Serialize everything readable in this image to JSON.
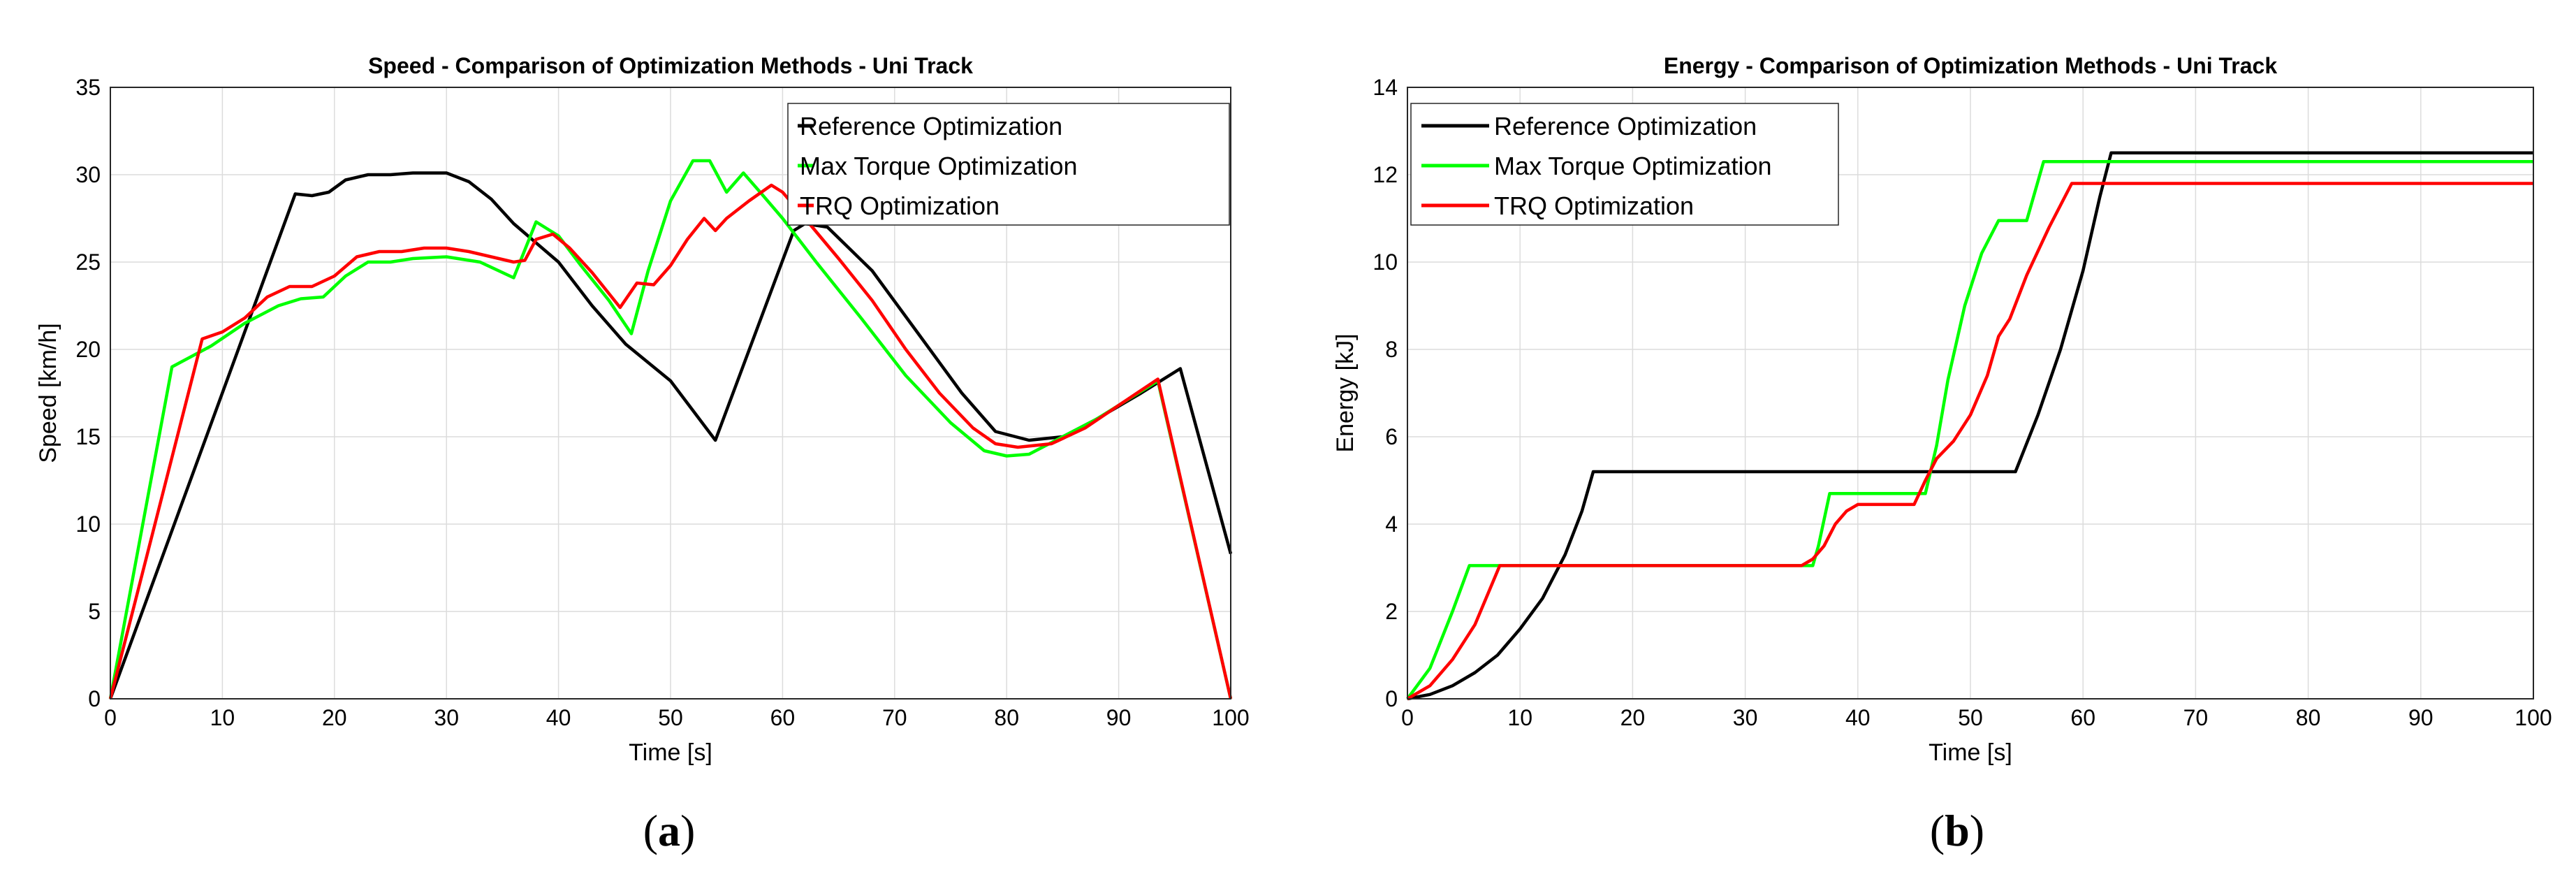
{
  "chart_data": [
    {
      "type": "line",
      "panel_label": "a",
      "title": "Speed - Comparison of Optimization Methods - Uni Track",
      "xlabel": "Time [s]",
      "ylabel": "Speed [km/h]",
      "xlim": [
        0,
        100
      ],
      "ylim": [
        0,
        35
      ],
      "xticks": [
        0,
        10,
        20,
        30,
        40,
        50,
        60,
        70,
        80,
        90,
        100
      ],
      "yticks": [
        0,
        5,
        10,
        15,
        20,
        25,
        30,
        35
      ],
      "grid": true,
      "legend_position": "top-right",
      "series": [
        {
          "name": "Reference Optimization",
          "color": "#000000",
          "points": [
            [
              0,
              0
            ],
            [
              16.5,
              28.9
            ],
            [
              18,
              28.8
            ],
            [
              19.5,
              29.0
            ],
            [
              21,
              29.7
            ],
            [
              23,
              30.0
            ],
            [
              25,
              30.0
            ],
            [
              27,
              30.1
            ],
            [
              30,
              30.1
            ],
            [
              32,
              29.6
            ],
            [
              34,
              28.6
            ],
            [
              36,
              27.2
            ],
            [
              40,
              25.0
            ],
            [
              43,
              22.5
            ],
            [
              46,
              20.3
            ],
            [
              50,
              18.2
            ],
            [
              52,
              16.5
            ],
            [
              54,
              14.8
            ],
            [
              61,
              26.8
            ],
            [
              62,
              27.2
            ],
            [
              64,
              27.0
            ],
            [
              68,
              24.5
            ],
            [
              72,
              21.0
            ],
            [
              76,
              17.5
            ],
            [
              79,
              15.3
            ],
            [
              82,
              14.8
            ],
            [
              85,
              15.0
            ],
            [
              88,
              16.0
            ],
            [
              92,
              17.5
            ],
            [
              95.5,
              18.9
            ],
            [
              100,
              8.3
            ]
          ]
        },
        {
          "name": "Max Torque Optimization",
          "color": "#00ff00",
          "points": [
            [
              0,
              0
            ],
            [
              5.5,
              19.0
            ],
            [
              9,
              20.2
            ],
            [
              12,
              21.5
            ],
            [
              15,
              22.5
            ],
            [
              17,
              22.9
            ],
            [
              19,
              23.0
            ],
            [
              21,
              24.2
            ],
            [
              23,
              25.0
            ],
            [
              25,
              25.0
            ],
            [
              27,
              25.2
            ],
            [
              30,
              25.3
            ],
            [
              33,
              25.0
            ],
            [
              36,
              24.1
            ],
            [
              38,
              27.3
            ],
            [
              40,
              26.5
            ],
            [
              42,
              24.8
            ],
            [
              44.5,
              22.8
            ],
            [
              46.5,
              20.9
            ],
            [
              48,
              24.5
            ],
            [
              50,
              28.5
            ],
            [
              52,
              30.8
            ],
            [
              53.5,
              30.8
            ],
            [
              55,
              29.0
            ],
            [
              56.5,
              30.1
            ],
            [
              58,
              29.0
            ],
            [
              60,
              27.5
            ],
            [
              63,
              25.0
            ],
            [
              67,
              21.8
            ],
            [
              71,
              18.5
            ],
            [
              75,
              15.8
            ],
            [
              78,
              14.2
            ],
            [
              80,
              13.9
            ],
            [
              82,
              14.0
            ],
            [
              85,
              15.0
            ],
            [
              88,
              16.0
            ],
            [
              91,
              17.2
            ],
            [
              93.5,
              18.2
            ],
            [
              100,
              0
            ]
          ]
        },
        {
          "name": "TRQ Optimization",
          "color": "#ff0000",
          "points": [
            [
              0,
              0
            ],
            [
              8.2,
              20.6
            ],
            [
              10,
              21.0
            ],
            [
              12,
              21.8
            ],
            [
              14,
              23.0
            ],
            [
              16,
              23.6
            ],
            [
              18,
              23.6
            ],
            [
              20,
              24.2
            ],
            [
              22,
              25.3
            ],
            [
              24,
              25.6
            ],
            [
              26,
              25.6
            ],
            [
              28,
              25.8
            ],
            [
              30,
              25.8
            ],
            [
              32,
              25.6
            ],
            [
              34,
              25.3
            ],
            [
              36,
              25.0
            ],
            [
              37,
              25.1
            ],
            [
              38,
              26.3
            ],
            [
              39.5,
              26.6
            ],
            [
              41,
              25.8
            ],
            [
              43,
              24.4
            ],
            [
              45.5,
              22.4
            ],
            [
              47,
              23.8
            ],
            [
              48.5,
              23.7
            ],
            [
              50,
              24.8
            ],
            [
              51.5,
              26.3
            ],
            [
              53,
              27.5
            ],
            [
              54,
              26.8
            ],
            [
              55,
              27.5
            ],
            [
              57,
              28.5
            ],
            [
              59,
              29.4
            ],
            [
              60,
              29.0
            ],
            [
              62,
              27.5
            ],
            [
              65,
              25.2
            ],
            [
              68,
              22.8
            ],
            [
              71,
              20.0
            ],
            [
              74,
              17.5
            ],
            [
              77,
              15.5
            ],
            [
              79,
              14.6
            ],
            [
              81,
              14.4
            ],
            [
              84,
              14.6
            ],
            [
              87,
              15.5
            ],
            [
              90,
              16.8
            ],
            [
              93.5,
              18.3
            ],
            [
              100,
              0
            ]
          ]
        }
      ]
    },
    {
      "type": "line",
      "panel_label": "b",
      "title": "Energy - Comparison of Optimization Methods - Uni Track",
      "xlabel": "Time [s]",
      "ylabel": "Energy [kJ]",
      "xlim": [
        0,
        100
      ],
      "ylim": [
        0,
        14
      ],
      "xticks": [
        0,
        10,
        20,
        30,
        40,
        50,
        60,
        70,
        80,
        90,
        100
      ],
      "yticks": [
        0,
        2,
        4,
        6,
        8,
        10,
        12,
        14
      ],
      "grid": true,
      "legend_position": "top-left",
      "series": [
        {
          "name": "Reference Optimization",
          "color": "#000000",
          "points": [
            [
              0,
              0
            ],
            [
              2,
              0.1
            ],
            [
              4,
              0.3
            ],
            [
              6,
              0.6
            ],
            [
              8,
              1.0
            ],
            [
              10,
              1.6
            ],
            [
              12,
              2.3
            ],
            [
              14,
              3.3
            ],
            [
              15.5,
              4.3
            ],
            [
              16.5,
              5.2
            ],
            [
              54,
              5.2
            ],
            [
              56,
              6.5
            ],
            [
              58,
              8.0
            ],
            [
              60,
              9.8
            ],
            [
              61.5,
              11.5
            ],
            [
              62.5,
              12.5
            ],
            [
              100,
              12.5
            ]
          ]
        },
        {
          "name": "Max Torque Optimization",
          "color": "#00ff00",
          "points": [
            [
              0,
              0
            ],
            [
              2,
              0.7
            ],
            [
              4,
              2.0
            ],
            [
              5.5,
              3.05
            ],
            [
              36,
              3.05
            ],
            [
              36.5,
              3.5
            ],
            [
              37.5,
              4.7
            ],
            [
              46,
              4.7
            ],
            [
              47,
              5.8
            ],
            [
              48,
              7.3
            ],
            [
              49.5,
              9.0
            ],
            [
              51,
              10.2
            ],
            [
              52.5,
              10.95
            ],
            [
              55,
              10.95
            ],
            [
              56.5,
              12.3
            ],
            [
              100,
              12.3
            ]
          ]
        },
        {
          "name": "TRQ Optimization",
          "color": "#ff0000",
          "points": [
            [
              0,
              0
            ],
            [
              2,
              0.3
            ],
            [
              4,
              0.9
            ],
            [
              6,
              1.7
            ],
            [
              8.2,
              3.05
            ],
            [
              35,
              3.05
            ],
            [
              36,
              3.2
            ],
            [
              37,
              3.5
            ],
            [
              38,
              4.0
            ],
            [
              39,
              4.3
            ],
            [
              40,
              4.45
            ],
            [
              45,
              4.45
            ],
            [
              46,
              5.0
            ],
            [
              47,
              5.5
            ],
            [
              48.5,
              5.9
            ],
            [
              50,
              6.5
            ],
            [
              51.5,
              7.4
            ],
            [
              52.5,
              8.3
            ],
            [
              53.5,
              8.7
            ],
            [
              55,
              9.7
            ],
            [
              57,
              10.8
            ],
            [
              59,
              11.8
            ],
            [
              100,
              11.8
            ]
          ]
        }
      ]
    }
  ]
}
